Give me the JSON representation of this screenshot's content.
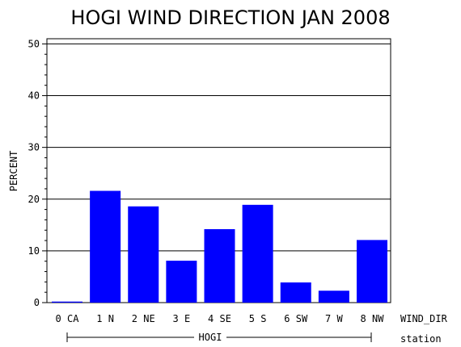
{
  "chart_data": {
    "type": "bar",
    "title": "HOGI WIND DIRECTION JAN 2008",
    "ylabel": "PERCENT",
    "xlabel": "WIND_DIR",
    "group_label": "HOGI",
    "group_axis_label": "station",
    "categories": [
      "0 CA",
      "1 N",
      "2 NE",
      "3 E",
      "4 SE",
      "5 S",
      "6 SW",
      "7 W",
      "8 NW"
    ],
    "values": [
      0.2,
      21.6,
      18.6,
      8.1,
      14.2,
      18.9,
      3.9,
      2.3,
      12.1
    ],
    "yticks": [
      0,
      10,
      20,
      30,
      40,
      50
    ],
    "ylim": [
      0,
      51
    ],
    "grid": true,
    "bar_color": "#0000ff",
    "series": [
      {
        "values": [
          0.2,
          21.6,
          18.6,
          8.1,
          14.2,
          18.9,
          3.9,
          2.3,
          12.1
        ]
      }
    ]
  }
}
